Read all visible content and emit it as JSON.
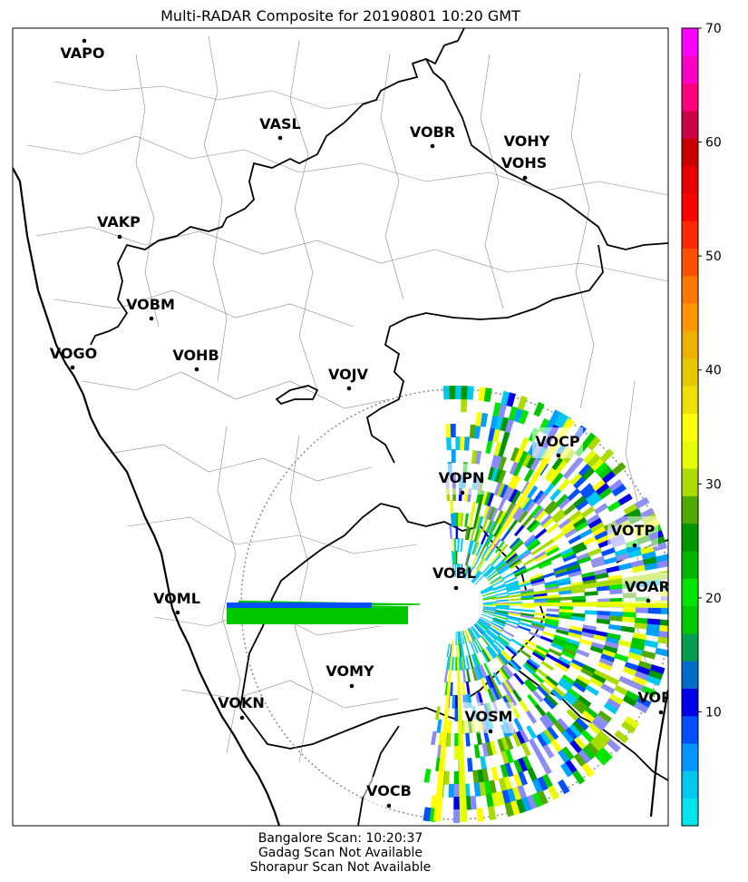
{
  "title": "Multi-RADAR Composite for 20190801 10:20 GMT",
  "footer_lines": [
    "Bangalore Scan: 10:20:37",
    "Gadag Scan Not Available",
    "Shorapur Scan Not Available"
  ],
  "stations": [
    {
      "code": "VAPO"
    },
    {
      "code": "VASL"
    },
    {
      "code": "VOBR"
    },
    {
      "code": "VOHY"
    },
    {
      "code": "VOHS"
    },
    {
      "code": "VAKP"
    },
    {
      "code": "VOBM"
    },
    {
      "code": "VOGO"
    },
    {
      "code": "VOHB"
    },
    {
      "code": "VOJV"
    },
    {
      "code": "VOCP"
    },
    {
      "code": "VOPN"
    },
    {
      "code": "VOTP"
    },
    {
      "code": "VOBL"
    },
    {
      "code": "VOAR"
    },
    {
      "code": "VOML"
    },
    {
      "code": "VOMY"
    },
    {
      "code": "VOKN"
    },
    {
      "code": "VOSM"
    },
    {
      "code": "VOPC"
    },
    {
      "code": "VOCB"
    }
  ],
  "colorbar": {
    "min": 0,
    "max": 70,
    "ticks": [
      "10",
      "20",
      "30",
      "40",
      "50",
      "60",
      "70"
    ],
    "colors": [
      "#00e4ee",
      "#00c8f0",
      "#0096ff",
      "#0050ff",
      "#0000e6",
      "#006ec8",
      "#00a050",
      "#00c800",
      "#00e600",
      "#00b400",
      "#009600",
      "#50aa00",
      "#aadc00",
      "#e6ff00",
      "#ffff00",
      "#f0e000",
      "#e6c800",
      "#f0b000",
      "#ff9600",
      "#ff7800",
      "#ff5000",
      "#ff2800",
      "#ff0000",
      "#e60000",
      "#c80000",
      "#cc0044",
      "#ff0080",
      "#ff00c8",
      "#ff00ff"
    ]
  }
}
